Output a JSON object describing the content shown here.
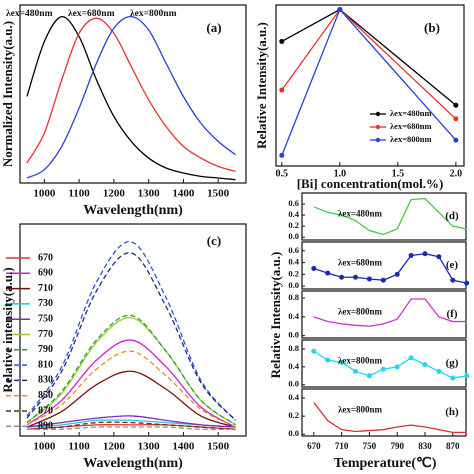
{
  "chart_data": [
    {
      "type": "line",
      "panel_label": "(a)",
      "x_label": "Wavelength(nm)",
      "y_label": "Normalized Intensity(a.u.)",
      "smooth": true,
      "legend": "top",
      "x": [
        950,
        1000,
        1050,
        1100,
        1150,
        1200,
        1250,
        1300,
        1350,
        1400,
        1450,
        1500,
        1550
      ],
      "xlim": [
        930,
        1580
      ],
      "ylim": [
        0,
        1.07
      ],
      "xticks": [
        1000,
        1100,
        1200,
        1300,
        1400,
        1500
      ],
      "series": [
        {
          "name": "λex=480nm",
          "color": "#000000",
          "values": [
            0.52,
            0.85,
            1.0,
            0.88,
            0.62,
            0.4,
            0.25,
            0.15,
            0.09,
            0.06,
            0.04,
            0.03,
            0.02
          ]
        },
        {
          "name": "λex=680nm",
          "color": "#e8322d",
          "values": [
            0.12,
            0.3,
            0.62,
            0.9,
            0.99,
            0.9,
            0.7,
            0.5,
            0.34,
            0.22,
            0.15,
            0.1,
            0.07
          ]
        },
        {
          "name": "λex=800nm",
          "color": "#2a3fd6",
          "values": [
            0.03,
            0.08,
            0.22,
            0.45,
            0.72,
            0.93,
            1.0,
            0.92,
            0.72,
            0.52,
            0.36,
            0.25,
            0.17
          ]
        }
      ]
    },
    {
      "type": "line",
      "panel_label": "(b)",
      "x_label": "[Bi] concentration(mol.%)",
      "y_label": "Relative Intensity(a.u.)",
      "legend": "lower right",
      "markers": true,
      "x": [
        0.5,
        1,
        2
      ],
      "xlim": [
        0.45,
        2.07
      ],
      "ylim": [
        -0.03,
        1.03
      ],
      "xticks": [
        0.5,
        {
          "value": 1,
          "label": "1.0"
        },
        1.5,
        {
          "value": 2,
          "label": "2.0"
        }
      ],
      "series": [
        {
          "name": "λex=480nm",
          "color": "#000000",
          "values": [
            0.79,
            1.0,
            0.37
          ]
        },
        {
          "name": "λex=680nm",
          "color": "#e8322d",
          "values": [
            0.47,
            1.0,
            0.28
          ]
        },
        {
          "name": "λex=800nm",
          "color": "#2a3fd6",
          "values": [
            0.04,
            1.0,
            0.14
          ]
        }
      ]
    },
    {
      "type": "line",
      "panel_label": "(c)",
      "x_label": "Wavelength(nm)",
      "y_label": "Relative intensity(a.u.)",
      "smooth": true,
      "legend": "upper left",
      "x": [
        950,
        1050,
        1150,
        1250,
        1350,
        1450,
        1550
      ],
      "xlim": [
        930,
        1580
      ],
      "ylim": [
        -0.02,
        0.93
      ],
      "xticks": [
        1000,
        1100,
        1200,
        1300,
        1400,
        1500
      ],
      "series": [
        {
          "name": "670",
          "color": "#e8322d",
          "values": [
            0.01,
            0.02,
            0.03,
            0.03,
            0.03,
            0.02,
            0.01
          ]
        },
        {
          "name": "690",
          "color": "#d020d0",
          "values": [
            0.03,
            0.14,
            0.32,
            0.41,
            0.29,
            0.11,
            0.02
          ]
        },
        {
          "name": "710",
          "color": "#7a1010",
          "values": [
            0.02,
            0.09,
            0.21,
            0.27,
            0.19,
            0.07,
            0.02
          ]
        },
        {
          "name": "730",
          "color": "#1fc8d8",
          "values": [
            0.02,
            0.03,
            0.05,
            0.05,
            0.04,
            0.03,
            0.02
          ]
        },
        {
          "name": "750",
          "color": "#7b2fbf",
          "values": [
            0.02,
            0.04,
            0.06,
            0.07,
            0.05,
            0.03,
            0.02
          ]
        },
        {
          "name": "770",
          "color": "#9acd32",
          "values": [
            0.04,
            0.17,
            0.4,
            0.51,
            0.36,
            0.14,
            0.03
          ]
        },
        {
          "name": "790",
          "color": "#2ca02c",
          "dash": true,
          "values": [
            0.04,
            0.18,
            0.41,
            0.52,
            0.36,
            0.14,
            0.03
          ]
        },
        {
          "name": "810",
          "color": "#3050e0",
          "dash": true,
          "values": [
            0.07,
            0.29,
            0.67,
            0.85,
            0.6,
            0.23,
            0.05
          ]
        },
        {
          "name": "830",
          "color": "#1a2a80",
          "dash": true,
          "values": [
            0.06,
            0.27,
            0.63,
            0.8,
            0.56,
            0.22,
            0.05
          ]
        },
        {
          "name": "850",
          "color": "#f08a20",
          "dash": true,
          "values": [
            0.03,
            0.12,
            0.28,
            0.36,
            0.25,
            0.1,
            0.02
          ]
        },
        {
          "name": "870",
          "color": "#5a3010",
          "dash": true,
          "values": [
            0.01,
            0.02,
            0.04,
            0.04,
            0.03,
            0.02,
            0.01
          ]
        },
        {
          "name": "890",
          "color": "#909090",
          "dash": true,
          "values": [
            0.01,
            0.01,
            0.02,
            0.02,
            0.02,
            0.01,
            0.01
          ]
        }
      ]
    },
    {
      "type": "line",
      "panel_label": "(d)",
      "legend": "inside",
      "x": [
        670,
        690,
        710,
        730,
        750,
        770,
        790,
        810,
        830,
        850,
        870,
        890
      ],
      "xlim": [
        653,
        889
      ],
      "ylim": [
        -0.05,
        0.8
      ],
      "yticks": [
        {
          "value": 0,
          "label": "0.0"
        },
        0.2,
        0.4,
        0.6
      ],
      "series": [
        {
          "name": "λex=480nm",
          "color": "#44cc44",
          "values": [
            0.55,
            0.45,
            0.4,
            0.3,
            0.12,
            0.05,
            0.15,
            0.68,
            0.7,
            0.45,
            0.2,
            0.15
          ]
        }
      ]
    },
    {
      "type": "line",
      "panel_label": "(e)",
      "legend": "inside",
      "markers": true,
      "x": [
        670,
        690,
        710,
        730,
        750,
        770,
        790,
        810,
        830,
        850,
        870,
        890
      ],
      "xlim": [
        653,
        889
      ],
      "ylim": [
        -0.05,
        0.75
      ],
      "yticks": [
        {
          "value": 0,
          "label": "0.0"
        },
        0.2,
        0.4,
        0.6
      ],
      "series": [
        {
          "name": "λex=680nm",
          "color": "#1a2ab0",
          "values": [
            0.3,
            0.22,
            0.15,
            0.15,
            0.12,
            0.1,
            0.2,
            0.52,
            0.55,
            0.5,
            0.1,
            0.05
          ]
        }
      ]
    },
    {
      "type": "line",
      "panel_label": "(f)",
      "legend": "inside",
      "y_label": "Relative Intensity(a.u.)",
      "x": [
        670,
        690,
        710,
        730,
        750,
        770,
        790,
        810,
        830,
        850,
        870,
        890
      ],
      "xlim": [
        653,
        889
      ],
      "ylim": [
        -0.05,
        0.95
      ],
      "yticks": [
        {
          "value": 0,
          "label": "0.0"
        },
        0.4,
        0.8
      ],
      "series": [
        {
          "name": "λex=800nm",
          "color": "#d030d0",
          "values": [
            0.4,
            0.3,
            0.25,
            0.22,
            0.2,
            0.25,
            0.35,
            0.78,
            0.78,
            0.4,
            0.3,
            0.3
          ]
        }
      ]
    },
    {
      "type": "line",
      "panel_label": "(g)",
      "legend": "inside",
      "markers": true,
      "x": [
        670,
        690,
        710,
        730,
        750,
        770,
        790,
        810,
        830,
        850,
        870,
        890
      ],
      "xlim": [
        653,
        889
      ],
      "ylim": [
        -0.05,
        1.0
      ],
      "yticks": [
        {
          "value": 0,
          "label": "0.0"
        },
        0.4,
        0.8
      ],
      "series": [
        {
          "name": "λex=800nm",
          "color": "#20d8e8",
          "values": [
            0.75,
            0.55,
            0.5,
            0.3,
            0.2,
            0.35,
            0.4,
            0.6,
            0.45,
            0.3,
            0.15,
            0.2
          ]
        }
      ]
    },
    {
      "type": "line",
      "panel_label": "(h)",
      "legend": "inside",
      "x_label": "Temperature(℃)",
      "x": [
        670,
        690,
        710,
        730,
        750,
        770,
        790,
        810,
        830,
        850,
        870,
        890
      ],
      "xlim": [
        653,
        889
      ],
      "ylim": [
        -0.02,
        0.5
      ],
      "xticks": [
        670,
        710,
        750,
        790,
        830,
        870
      ],
      "yticks": [
        {
          "value": 0,
          "label": "0.0"
        },
        0.2,
        0.4
      ],
      "series": [
        {
          "name": "λex=800nm",
          "color": "#d83030",
          "values": [
            0.35,
            0.15,
            0.05,
            0.03,
            0.04,
            0.05,
            0.08,
            0.1,
            0.08,
            0.05,
            0.02,
            0.02
          ]
        }
      ]
    }
  ]
}
